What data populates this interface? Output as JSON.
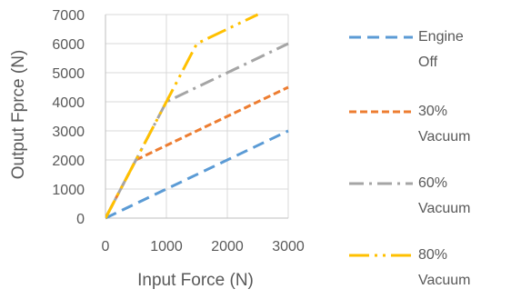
{
  "chart_data": {
    "type": "line",
    "title": "",
    "xlabel": "Input Force (N)",
    "ylabel": "Output Fprce (N)",
    "xlim": [
      0,
      3000
    ],
    "ylim": [
      0,
      7000
    ],
    "x_ticks": [
      0,
      1000,
      2000,
      3000
    ],
    "y_ticks": [
      0,
      1000,
      2000,
      3000,
      4000,
      5000,
      6000,
      7000
    ],
    "grid": "vertical and horizontal gridlines",
    "legend_position": "right",
    "series": [
      {
        "name": "Engine Off",
        "color": "#5B9BD5",
        "dash": "dashed",
        "points": [
          [
            0,
            0
          ],
          [
            3000,
            3000
          ]
        ]
      },
      {
        "name": "30% Vacuum",
        "color": "#ED7D31",
        "dash": "short-dashed",
        "points": [
          [
            0,
            0
          ],
          [
            500,
            2000
          ],
          [
            3000,
            4500
          ]
        ]
      },
      {
        "name": "60% Vacuum",
        "color": "#A5A5A5",
        "dash": "dash-dot",
        "points": [
          [
            0,
            0
          ],
          [
            1000,
            4000
          ],
          [
            3000,
            6000
          ]
        ]
      },
      {
        "name": "80% Vacuum",
        "color": "#FFC000",
        "dash": "long-dash-dot-dot",
        "points": [
          [
            0,
            0
          ],
          [
            1500,
            6000
          ],
          [
            2500,
            7000
          ]
        ]
      }
    ]
  }
}
